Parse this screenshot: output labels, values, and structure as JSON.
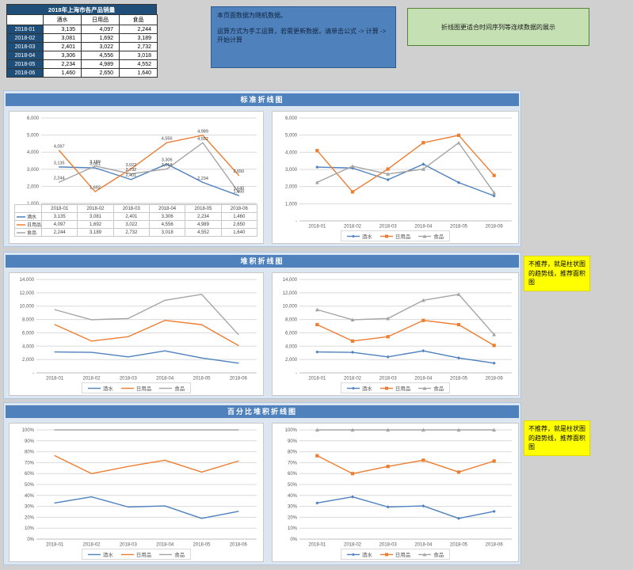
{
  "page": {
    "background": "#D0D0D0"
  },
  "colors": {
    "series_blue": "#4E81BD",
    "series_orange": "#ED7D31",
    "series_gray": "#A5A5A5",
    "header_blue": "#4F81BD",
    "table_navy": "#1F4E79",
    "section_bg": "#DCE6F1",
    "note_yellow": "#FFFF00",
    "notice_green_bg": "#C5E0B3"
  },
  "table": {
    "title": "2018年上海市各产品销量",
    "col_headers": [
      "酒水",
      "日用品",
      "食品"
    ],
    "rows": [
      {
        "label": "2018-01",
        "values": [
          "3,135",
          "4,097",
          "2,244"
        ]
      },
      {
        "label": "2018-02",
        "values": [
          "3,081",
          "1,692",
          "3,189"
        ]
      },
      {
        "label": "2018-03",
        "values": [
          "2,401",
          "3,022",
          "2,732"
        ]
      },
      {
        "label": "2018-04",
        "values": [
          "3,306",
          "4,556",
          "3,018"
        ]
      },
      {
        "label": "2018-05",
        "values": [
          "2,234",
          "4,989",
          "4,552"
        ]
      },
      {
        "label": "2018-06",
        "values": [
          "1,460",
          "2,650",
          "1,640"
        ]
      }
    ]
  },
  "notices": {
    "blue_line1": "本页面数据为随机数据。",
    "blue_line2": "运算方式为手工运算，若需更新数据，请单击公式 -> 计算 -> 开始计算",
    "green": "折线图更适合时间序列等连续数据的展示",
    "yellow": "不推荐，就是柱状图的趋势线，推荐面积图"
  },
  "sections": [
    {
      "title": "标准折线图"
    },
    {
      "title": "堆积折线图"
    },
    {
      "title": "百分比堆积折线图"
    }
  ],
  "chart_data": [
    {
      "id": "standard-line-labeled",
      "type": "line",
      "stacking": "none",
      "categories": [
        "2018-01",
        "2018-02",
        "2018-03",
        "2018-04",
        "2018-05",
        "2018-06"
      ],
      "series": [
        {
          "name": "酒水",
          "color": "#4E81BD",
          "values": [
            3135,
            3081,
            2401,
            3306,
            2234,
            1460
          ]
        },
        {
          "name": "日用品",
          "color": "#ED7D31",
          "values": [
            4097,
            1692,
            3022,
            4556,
            4989,
            2650
          ]
        },
        {
          "name": "食品",
          "color": "#A5A5A5",
          "values": [
            2244,
            3189,
            2732,
            3018,
            4552,
            1640
          ]
        }
      ],
      "ylim": [
        1000,
        6000
      ],
      "ystep": 1000,
      "yformat": "number",
      "markers": false,
      "data_labels": true,
      "data_table": true,
      "legend": false,
      "grid": true,
      "legend_position": "bottom"
    },
    {
      "id": "standard-line-markers",
      "type": "line",
      "stacking": "none",
      "categories": [
        "2018-01",
        "2018-02",
        "2018-03",
        "2018-04",
        "2018-05",
        "2018-06"
      ],
      "series": [
        {
          "name": "酒水",
          "color": "#4E81BD",
          "values": [
            3135,
            3081,
            2401,
            3306,
            2234,
            1460
          ]
        },
        {
          "name": "日用品",
          "color": "#ED7D31",
          "values": [
            4097,
            1692,
            3022,
            4556,
            4989,
            2650
          ]
        },
        {
          "name": "食品",
          "color": "#A5A5A5",
          "values": [
            2244,
            3189,
            2732,
            3018,
            4552,
            1640
          ]
        }
      ],
      "ylim": [
        0,
        6000
      ],
      "ystep": 1000,
      "yformat": "number",
      "markers": true,
      "data_labels": false,
      "data_table": false,
      "legend": true,
      "grid": true,
      "legend_position": "bottom"
    },
    {
      "id": "stacked-line",
      "type": "line",
      "stacking": "stacked",
      "categories": [
        "2018-01",
        "2018-02",
        "2018-03",
        "2018-04",
        "2018-05",
        "2018-06"
      ],
      "series": [
        {
          "name": "酒水",
          "color": "#4E81BD",
          "values": [
            3135,
            3081,
            2401,
            3306,
            2234,
            1460
          ]
        },
        {
          "name": "日用品",
          "color": "#ED7D31",
          "values": [
            4097,
            1692,
            3022,
            4556,
            4989,
            2650
          ]
        },
        {
          "name": "食品",
          "color": "#A5A5A5",
          "values": [
            2244,
            3189,
            2732,
            3018,
            4552,
            1640
          ]
        }
      ],
      "ylim": [
        0,
        14000
      ],
      "ystep": 2000,
      "yformat": "number",
      "markers": false,
      "data_labels": false,
      "data_table": false,
      "legend": true,
      "grid": true,
      "legend_position": "bottom"
    },
    {
      "id": "stacked-line-markers",
      "type": "line",
      "stacking": "stacked",
      "categories": [
        "2018-01",
        "2018-02",
        "2018-03",
        "2018-04",
        "2018-05",
        "2018-06"
      ],
      "series": [
        {
          "name": "酒水",
          "color": "#4E81BD",
          "values": [
            3135,
            3081,
            2401,
            3306,
            2234,
            1460
          ]
        },
        {
          "name": "日用品",
          "color": "#ED7D31",
          "values": [
            4097,
            1692,
            3022,
            4556,
            4989,
            2650
          ]
        },
        {
          "name": "食品",
          "color": "#A5A5A5",
          "values": [
            2244,
            3189,
            2732,
            3018,
            4552,
            1640
          ]
        }
      ],
      "ylim": [
        0,
        14000
      ],
      "ystep": 2000,
      "yformat": "number",
      "markers": true,
      "data_labels": false,
      "data_table": false,
      "legend": true,
      "grid": true,
      "legend_position": "bottom"
    },
    {
      "id": "percent-stacked-line",
      "type": "line",
      "stacking": "percent",
      "categories": [
        "2018-01",
        "2018-02",
        "2018-03",
        "2018-04",
        "2018-05",
        "2018-06"
      ],
      "series": [
        {
          "name": "酒水",
          "color": "#4E81BD",
          "values": [
            3135,
            3081,
            2401,
            3306,
            2234,
            1460
          ]
        },
        {
          "name": "日用品",
          "color": "#ED7D31",
          "values": [
            4097,
            1692,
            3022,
            4556,
            4989,
            2650
          ]
        },
        {
          "name": "食品",
          "color": "#A5A5A5",
          "values": [
            2244,
            3189,
            2732,
            3018,
            4552,
            1640
          ]
        }
      ],
      "ylim": [
        0,
        100
      ],
      "ystep": 10,
      "yformat": "percent",
      "markers": false,
      "data_labels": false,
      "data_table": false,
      "legend": true,
      "grid": true,
      "legend_position": "bottom"
    },
    {
      "id": "percent-stacked-line-markers",
      "type": "line",
      "stacking": "percent",
      "categories": [
        "2018-01",
        "2018-02",
        "2018-03",
        "2018-04",
        "2018-05",
        "2018-06"
      ],
      "series": [
        {
          "name": "酒水",
          "color": "#4E81BD",
          "values": [
            3135,
            3081,
            2401,
            3306,
            2234,
            1460
          ]
        },
        {
          "name": "日用品",
          "color": "#ED7D31",
          "values": [
            4097,
            1692,
            3022,
            4556,
            4989,
            2650
          ]
        },
        {
          "name": "食品",
          "color": "#A5A5A5",
          "values": [
            2244,
            3189,
            2732,
            3018,
            4552,
            1640
          ]
        }
      ],
      "ylim": [
        0,
        100
      ],
      "ystep": 10,
      "yformat": "percent",
      "markers": true,
      "data_labels": false,
      "data_table": false,
      "legend": true,
      "grid": true,
      "legend_position": "bottom"
    }
  ]
}
